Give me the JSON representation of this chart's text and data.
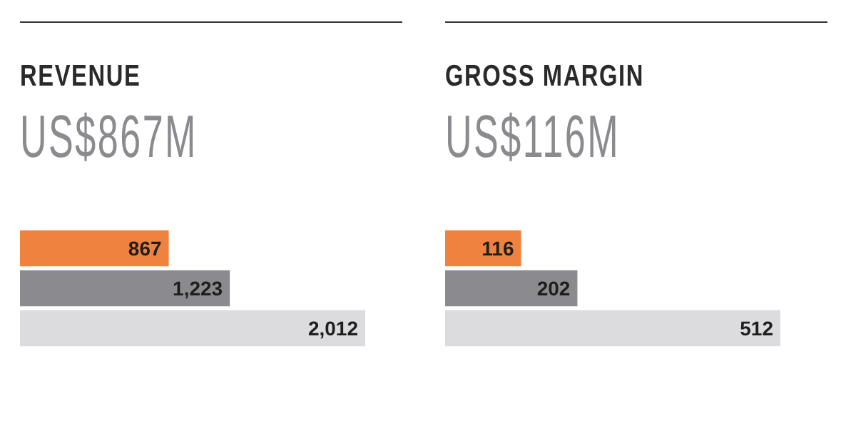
{
  "chart_data": [
    {
      "type": "bar",
      "orientation": "horizontal",
      "title": "REVENUE",
      "subtitle": "US$867M",
      "categories": [
        null,
        null,
        null
      ],
      "values": [
        867,
        1223,
        2012
      ],
      "value_labels": [
        "867",
        "1,223",
        "2,012"
      ],
      "colors": [
        "#f0823f",
        "#8b8a8f",
        "#dcdcde"
      ],
      "tick_labels": false
    },
    {
      "type": "bar",
      "orientation": "horizontal",
      "title": "GROSS MARGIN",
      "subtitle": "US$116M",
      "categories": [
        null,
        null,
        null
      ],
      "values": [
        116,
        202,
        512
      ],
      "value_labels": [
        "116",
        "202",
        "512"
      ],
      "colors": [
        "#f0823f",
        "#8b8a8f",
        "#dcdcde"
      ],
      "tick_labels": false
    }
  ]
}
